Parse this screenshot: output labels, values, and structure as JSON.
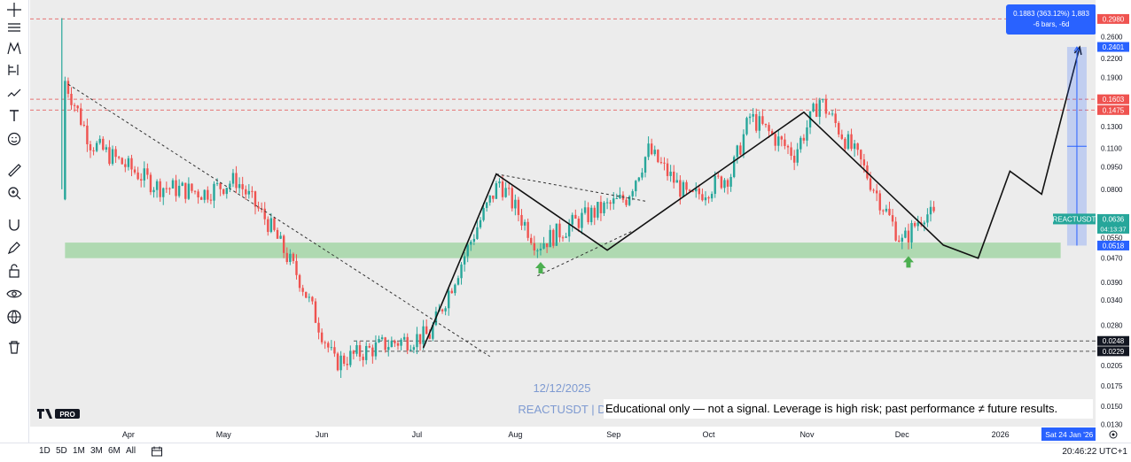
{
  "chart_data": {
    "type": "candlestick",
    "symbol": "REACTUSDT",
    "y_scale": "log",
    "ylim": [
      0.0128,
      0.345
    ],
    "x_axis": {
      "start": "2025-03-01",
      "end": "2026-01-31",
      "tick_labels": [
        {
          "label": "Apr",
          "date": "2025-04-01"
        },
        {
          "label": "May",
          "date": "2025-05-01"
        },
        {
          "label": "Jun",
          "date": "2025-06-01"
        },
        {
          "label": "Jul",
          "date": "2025-07-01"
        },
        {
          "label": "Aug",
          "date": "2025-08-01"
        },
        {
          "label": "Sep",
          "date": "2025-09-01"
        },
        {
          "label": "Oct",
          "date": "2025-10-01"
        },
        {
          "label": "Nov",
          "date": "2025-11-01"
        },
        {
          "label": "Dec",
          "date": "2025-12-01"
        },
        {
          "label": "2026",
          "date": "2026-01-01"
        }
      ],
      "cursor_label": "Sat 24 Jan '26",
      "cursor_label_suffix": "'26"
    },
    "y_ticks": [
      "0.2600",
      "0.2200",
      "0.1900",
      "0.1600",
      "0.1300",
      "0.1100",
      "0.0950",
      "0.0800",
      "0.0550",
      "0.0470",
      "0.0390",
      "0.0340",
      "0.0280",
      "0.0205",
      "0.0175",
      "0.0150",
      "0.0130"
    ],
    "ohlc_anchors": [
      {
        "date": "2025-03-12",
        "close": 0.185
      },
      {
        "date": "2025-03-20",
        "close": 0.115
      },
      {
        "date": "2025-04-10",
        "close": 0.082
      },
      {
        "date": "2025-04-25",
        "close": 0.078
      },
      {
        "date": "2025-05-05",
        "close": 0.086
      },
      {
        "date": "2025-05-15",
        "close": 0.062
      },
      {
        "date": "2025-05-25",
        "close": 0.04
      },
      {
        "date": "2025-06-05",
        "close": 0.021
      },
      {
        "date": "2025-06-20",
        "close": 0.024
      },
      {
        "date": "2025-07-05",
        "close": 0.026
      },
      {
        "date": "2025-07-20",
        "close": 0.06
      },
      {
        "date": "2025-07-27",
        "close": 0.085
      },
      {
        "date": "2025-08-08",
        "close": 0.052
      },
      {
        "date": "2025-08-22",
        "close": 0.064
      },
      {
        "date": "2025-09-05",
        "close": 0.075
      },
      {
        "date": "2025-09-12",
        "close": 0.108
      },
      {
        "date": "2025-09-25",
        "close": 0.074
      },
      {
        "date": "2025-10-08",
        "close": 0.09
      },
      {
        "date": "2025-10-14",
        "close": 0.14
      },
      {
        "date": "2025-10-28",
        "close": 0.105
      },
      {
        "date": "2025-11-05",
        "close": 0.16
      },
      {
        "date": "2025-11-18",
        "close": 0.098
      },
      {
        "date": "2025-12-01",
        "close": 0.053
      },
      {
        "date": "2025-12-08",
        "close": 0.067
      },
      {
        "date": "2025-12-12",
        "close": 0.0636
      }
    ],
    "horizontal_lines": [
      {
        "price": 0.298,
        "style": "dashed",
        "color": "#e57373"
      },
      {
        "price": 0.1603,
        "style": "dashed",
        "color": "#e57373"
      },
      {
        "price": 0.1475,
        "style": "dashed",
        "color": "#e57373"
      },
      {
        "price": 0.0248,
        "style": "dashed",
        "color": "#555555"
      },
      {
        "price": 0.0229,
        "style": "dashed",
        "color": "#555555"
      }
    ],
    "support_zone": {
      "from_date": "2025-03-12",
      "to_date": "2026-01-20",
      "low": 0.047,
      "high": 0.053,
      "color": "#a5d6a7"
    },
    "trendlines": [
      {
        "points": [
          [
            "2025-03-13",
            0.18
          ],
          [
            "2025-07-24",
            0.022
          ]
        ],
        "style": "dashed"
      },
      {
        "points": [
          [
            "2025-08-08",
            0.041
          ],
          [
            "2025-09-07",
            0.058
          ]
        ],
        "style": "dashed"
      },
      {
        "points": [
          [
            "2025-07-26",
            0.09
          ],
          [
            "2025-09-11",
            0.073
          ]
        ],
        "style": "dashed"
      }
    ],
    "projection_path": [
      [
        "2025-07-03",
        0.0235
      ],
      [
        "2025-07-26",
        0.09
      ],
      [
        "2025-08-30",
        0.05
      ],
      [
        "2025-10-31",
        0.145
      ],
      [
        "2025-12-14",
        0.052
      ],
      [
        "2025-12-25",
        0.047
      ],
      [
        "2026-01-04",
        0.092
      ],
      [
        "2026-01-14",
        0.077
      ],
      [
        "2026-01-26",
        0.24
      ]
    ],
    "markers": [
      {
        "type": "arrow-up",
        "date": "2025-08-09",
        "price": 0.0435,
        "color": "#4caf50"
      },
      {
        "type": "arrow-up",
        "date": "2025-12-03",
        "price": 0.0455,
        "color": "#4caf50"
      }
    ],
    "measure": {
      "date": "2026-01-24",
      "from": 0.0518,
      "to": 0.2401,
      "label_line1": "0.1883 (363.12%) 1,883",
      "label_line2": "-6 bars, -6d",
      "color": "#2962ff"
    },
    "price_labels": [
      {
        "price": 0.298,
        "text": "0.2980",
        "bg": "#ef5350"
      },
      {
        "price": 0.2401,
        "text": "0.2401",
        "bg": "#2962ff"
      },
      {
        "price": 0.1603,
        "text": "0.1603",
        "bg": "#ef5350"
      },
      {
        "price": 0.1475,
        "text": "0.1475",
        "bg": "#ef5350"
      },
      {
        "price": 0.0636,
        "text": "0.0636",
        "bg": "#26a69a",
        "sub": "04:13:37"
      },
      {
        "price": 0.0518,
        "text": "0.0518",
        "bg": "#2962ff"
      },
      {
        "price": 0.0248,
        "text": "0.0248",
        "bg": "#131722"
      },
      {
        "price": 0.0229,
        "text": "0.0229",
        "bg": "#131722"
      }
    ],
    "last_price_tag": "REACTUSDT",
    "watermark": {
      "date": "12/12/2025",
      "symbol": "REACTUSDT | D"
    }
  },
  "disclaimer": "Educational only — not a signal. Leverage is high risk; past performance ≠ future results.",
  "bottom_bar": {
    "ranges": [
      "1D",
      "5D",
      "1M",
      "3M",
      "6M",
      "All"
    ],
    "clock": "20:46:22 UTC+1"
  },
  "icons": [
    "crosshair-icon",
    "horizontal-lines-icon",
    "pattern-icon",
    "fib-icon",
    "brush-icon",
    "text-icon",
    "emoji-icon",
    "ruler-icon",
    "zoom-in-icon",
    "magnet-icon",
    "lock-pencil-icon",
    "lock-icon",
    "eye-icon",
    "globe-icon",
    "trash-icon",
    "settings-icon",
    "calendar-range-icon"
  ],
  "colors": {
    "up": "#26a69a",
    "down": "#ef5350",
    "background": "#ececec"
  }
}
